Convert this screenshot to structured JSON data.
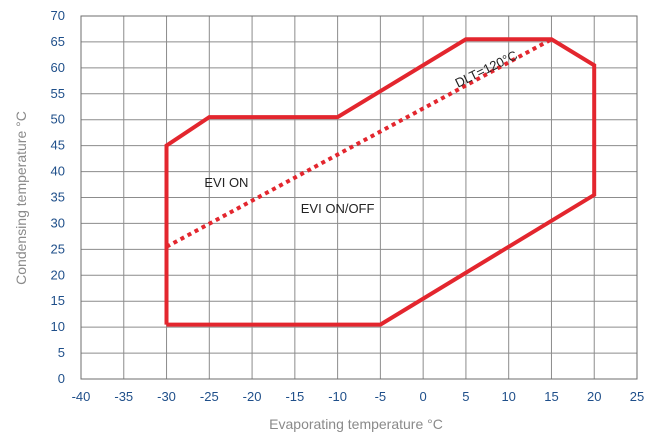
{
  "chart_data": {
    "type": "line",
    "xlabel": "Evaporating temperature °C",
    "ylabel": "Condensing temperature °C",
    "xlim": [
      -40,
      25
    ],
    "ylim": [
      0,
      70
    ],
    "xticks": [
      -40,
      -35,
      -30,
      -25,
      -20,
      -15,
      -10,
      -5,
      0,
      5,
      10,
      15,
      20,
      25
    ],
    "yticks": [
      0,
      5,
      10,
      15,
      20,
      25,
      30,
      35,
      40,
      45,
      50,
      55,
      60,
      65,
      70
    ],
    "grid": true,
    "series": [
      {
        "style": "solid",
        "color": "#e3262e",
        "points": [
          [
            -30,
            10.5
          ],
          [
            -30,
            45
          ],
          [
            -25,
            50.5
          ],
          [
            -10,
            50.5
          ],
          [
            5,
            65.5
          ],
          [
            15,
            65.5
          ],
          [
            20,
            60.5
          ],
          [
            20,
            35.5
          ],
          [
            -5,
            10.5
          ],
          [
            -30,
            10.5
          ]
        ]
      },
      {
        "style": "dotted",
        "color": "#e3262e",
        "points": [
          [
            -30,
            25.5
          ],
          [
            15,
            65.5
          ]
        ]
      }
    ],
    "annotations": [
      {
        "text": "DLT=120°C",
        "x": 7.6,
        "y": 59,
        "rotate": -26
      },
      {
        "text": "EVI ON",
        "x": -23,
        "y": 37
      },
      {
        "text": "EVI ON/OFF",
        "x": -10,
        "y": 32
      }
    ]
  }
}
